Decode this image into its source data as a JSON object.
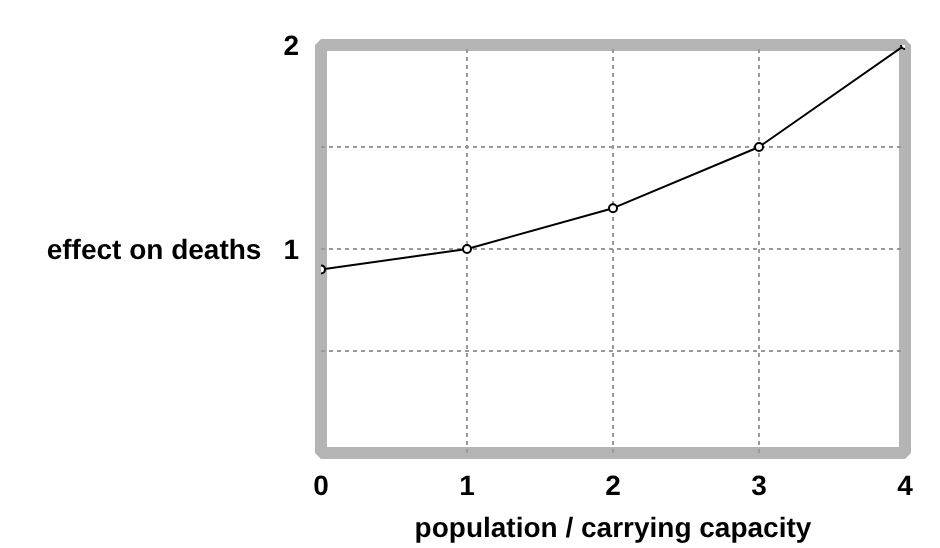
{
  "chart_data": {
    "type": "line",
    "xlabel": "population / carrying capacity",
    "ylabel": "effect on deaths",
    "x": [
      0,
      1,
      2,
      3,
      4
    ],
    "series": [
      {
        "color": "#000000",
        "values": [
          0.9,
          1.0,
          1.2,
          1.5,
          2.0
        ]
      }
    ],
    "xlim": [
      0,
      4
    ],
    "ylim": [
      0,
      2
    ],
    "xticks": [
      0,
      1,
      2,
      3,
      4
    ],
    "yticks": [
      {
        "value": 0,
        "label": null
      },
      {
        "value": 0.5,
        "label": null
      },
      1,
      {
        "value": 1.5,
        "label": null
      },
      2
    ],
    "grid": true,
    "marker": "circle",
    "line_style": "solid"
  }
}
